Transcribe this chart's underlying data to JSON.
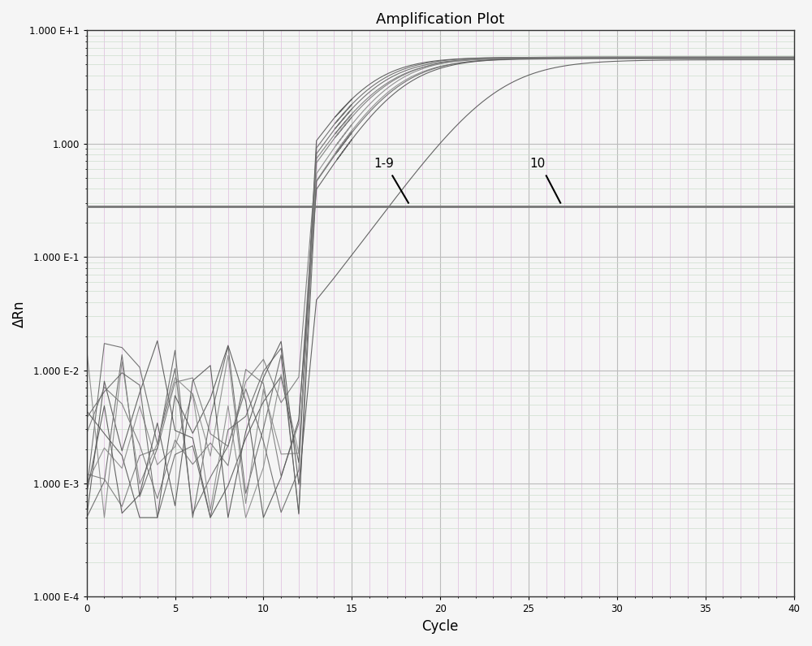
{
  "title": "Amplification Plot",
  "xlabel": "Cycle",
  "ylabel": "ΔRn",
  "xlim": [
    0,
    40
  ],
  "ylim_log": [
    -4,
    1
  ],
  "threshold_y": 0.28,
  "background_color": "#f5f5f5",
  "grid_major_color": "#bbbbbb",
  "grid_minor_color_v": "#ddbbdd",
  "grid_minor_color_h": "#ccddcc",
  "curve_colors": [
    "#555555",
    "#666666",
    "#777777",
    "#888888",
    "#555555",
    "#666666",
    "#777777",
    "#888888",
    "#666666",
    "#555555"
  ],
  "threshold_color": "#777777",
  "annotation_color": "#000000",
  "ct_values_1_9": [
    15.5,
    16.0,
    16.5,
    17.0,
    17.5,
    15.8,
    16.3,
    16.8,
    17.2
  ],
  "plateau_1_9": [
    5.8,
    5.7,
    5.8,
    5.6,
    5.7,
    5.8,
    5.7,
    5.8,
    5.7
  ],
  "steepness_1_9": [
    0.6,
    0.6,
    0.58,
    0.6,
    0.58,
    0.6,
    0.58,
    0.6,
    0.58
  ],
  "ct_value_10": 23.0,
  "plateau_10": 5.5,
  "steepness_10": 0.5,
  "baseline_level": 0.005,
  "noise_max_cycles": 15
}
